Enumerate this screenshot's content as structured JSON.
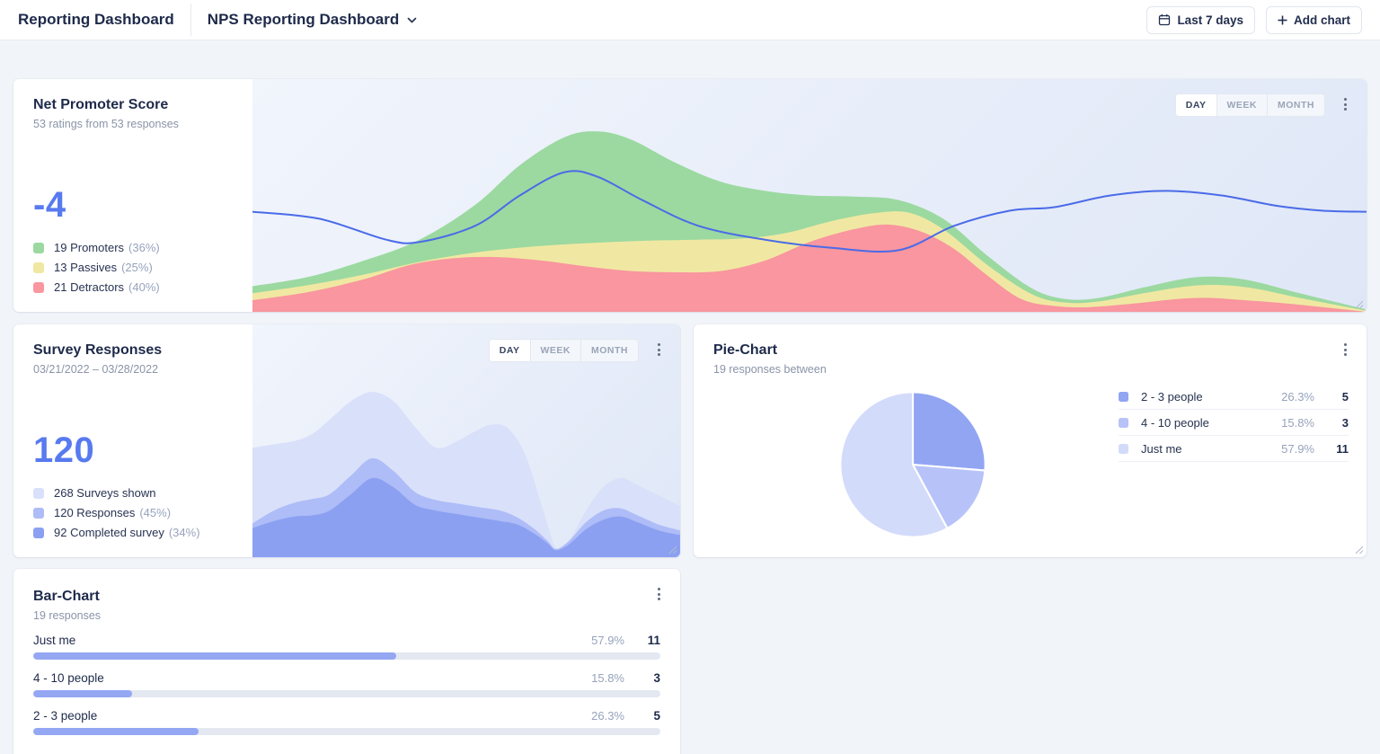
{
  "header": {
    "app_title": "Reporting Dashboard",
    "dashboard_title": "NPS Reporting Dashboard",
    "date_range_label": "Last 7 days",
    "add_chart_label": "Add chart"
  },
  "interval_toggle": {
    "options": [
      "DAY",
      "WEEK",
      "MONTH"
    ],
    "active": "DAY"
  },
  "nps_card": {
    "title": "Net Promoter Score",
    "subtitle": "53 ratings from 53 responses",
    "score": "-4",
    "legend": [
      {
        "label": "19 Promoters",
        "pct": "(36%)",
        "color": "#9BD9A0"
      },
      {
        "label": "13 Passives",
        "pct": "(25%)",
        "color": "#F0E8A2"
      },
      {
        "label": "21 Detractors",
        "pct": "(40%)",
        "color": "#F9969F"
      }
    ]
  },
  "survey_card": {
    "title": "Survey Responses",
    "subtitle": "03/21/2022 – 03/28/2022",
    "total": "120",
    "legend": [
      {
        "label": "268 Surveys shown",
        "pct": "",
        "color": "#D9E0FA"
      },
      {
        "label": "120 Responses",
        "pct": "(45%)",
        "color": "#AEBCF7"
      },
      {
        "label": "92 Completed survey",
        "pct": "(34%)",
        "color": "#8CA0F2"
      }
    ]
  },
  "pie_card": {
    "title": "Pie-Chart",
    "subtitle": "19 responses between",
    "rows": [
      {
        "label": "2 - 3 people",
        "pct": "26.3%",
        "count": "5",
        "color": "#92A5F3"
      },
      {
        "label": "4 - 10 people",
        "pct": "15.8%",
        "count": "3",
        "color": "#B7C3F8"
      },
      {
        "label": "Just me",
        "pct": "57.9%",
        "count": "11",
        "color": "#D3DBFA"
      }
    ]
  },
  "bar_card": {
    "title": "Bar-Chart",
    "subtitle": "19 responses",
    "rows": [
      {
        "label": "Just me",
        "pct": "57.9%",
        "count": "11"
      },
      {
        "label": "4 - 10 people",
        "pct": "15.8%",
        "count": "3"
      },
      {
        "label": "2 - 3 people",
        "pct": "26.3%",
        "count": "5"
      }
    ]
  },
  "chart_data": [
    {
      "id": "nps-trend",
      "type": "area",
      "title": "Net Promoter Score trend",
      "axes_visible": false,
      "note": "Smoothed overlapping areas, painted in listed order; points are [x 0-100, y fraction from top 0-1]; no axis ticks shown in UI",
      "series": [
        {
          "name": "Promoters",
          "color": "#9BD9A0",
          "points": [
            [
              0,
              0.89
            ],
            [
              5,
              0.85
            ],
            [
              10,
              0.78
            ],
            [
              15,
              0.69
            ],
            [
              20,
              0.54
            ],
            [
              24,
              0.37
            ],
            [
              28,
              0.25
            ],
            [
              31,
              0.225
            ],
            [
              34,
              0.26
            ],
            [
              38,
              0.36
            ],
            [
              42,
              0.44
            ],
            [
              46,
              0.48
            ],
            [
              50,
              0.5
            ],
            [
              54,
              0.505
            ],
            [
              58,
              0.52
            ],
            [
              62,
              0.6
            ],
            [
              66,
              0.76
            ],
            [
              70,
              0.9
            ],
            [
              73,
              0.945
            ],
            [
              76,
              0.94
            ],
            [
              80,
              0.895
            ],
            [
              84,
              0.855
            ],
            [
              87,
              0.85
            ],
            [
              90,
              0.87
            ],
            [
              94,
              0.92
            ],
            [
              100,
              0.99
            ]
          ]
        },
        {
          "name": "Passives",
          "color": "#F0E8A2",
          "points": [
            [
              0,
              0.92
            ],
            [
              5,
              0.885
            ],
            [
              10,
              0.84
            ],
            [
              15,
              0.785
            ],
            [
              20,
              0.745
            ],
            [
              25,
              0.72
            ],
            [
              30,
              0.705
            ],
            [
              35,
              0.695
            ],
            [
              40,
              0.69
            ],
            [
              44,
              0.685
            ],
            [
              48,
              0.66
            ],
            [
              52,
              0.61
            ],
            [
              56,
              0.575
            ],
            [
              59,
              0.575
            ],
            [
              62,
              0.645
            ],
            [
              66,
              0.8
            ],
            [
              70,
              0.925
            ],
            [
              73,
              0.96
            ],
            [
              76,
              0.955
            ],
            [
              80,
              0.92
            ],
            [
              84,
              0.89
            ],
            [
              87,
              0.885
            ],
            [
              90,
              0.9
            ],
            [
              94,
              0.94
            ],
            [
              100,
              0.995
            ]
          ]
        },
        {
          "name": "Detractors",
          "color": "#F9969F",
          "points": [
            [
              0,
              0.95
            ],
            [
              5,
              0.915
            ],
            [
              10,
              0.86
            ],
            [
              14,
              0.8
            ],
            [
              18,
              0.77
            ],
            [
              22,
              0.765
            ],
            [
              26,
              0.78
            ],
            [
              30,
              0.805
            ],
            [
              34,
              0.825
            ],
            [
              38,
              0.83
            ],
            [
              42,
              0.825
            ],
            [
              46,
              0.78
            ],
            [
              50,
              0.7
            ],
            [
              54,
              0.645
            ],
            [
              57,
              0.625
            ],
            [
              60,
              0.655
            ],
            [
              63,
              0.73
            ],
            [
              66,
              0.845
            ],
            [
              69,
              0.945
            ],
            [
              72,
              0.975
            ],
            [
              75,
              0.98
            ],
            [
              79,
              0.965
            ],
            [
              83,
              0.945
            ],
            [
              86,
              0.94
            ],
            [
              89,
              0.95
            ],
            [
              93,
              0.965
            ],
            [
              100,
              1.0
            ]
          ]
        },
        {
          "name": "NPS",
          "type": "line",
          "color": "#4A6BE8",
          "points": [
            [
              0,
              0.57
            ],
            [
              6,
              0.6
            ],
            [
              12,
              0.69
            ],
            [
              15,
              0.7
            ],
            [
              20,
              0.63
            ],
            [
              24,
              0.5
            ],
            [
              28,
              0.4
            ],
            [
              31,
              0.42
            ],
            [
              35,
              0.52
            ],
            [
              40,
              0.63
            ],
            [
              46,
              0.69
            ],
            [
              52,
              0.725
            ],
            [
              58,
              0.735
            ],
            [
              63,
              0.63
            ],
            [
              68,
              0.565
            ],
            [
              72,
              0.55
            ],
            [
              77,
              0.5
            ],
            [
              82,
              0.48
            ],
            [
              87,
              0.5
            ],
            [
              92,
              0.545
            ],
            [
              96,
              0.565
            ],
            [
              100,
              0.57
            ]
          ]
        }
      ]
    },
    {
      "id": "survey-trend",
      "type": "area",
      "title": "Survey Responses trend",
      "axes_visible": false,
      "note": "Smoothed overlapping areas, painted in listed order; points are [x 0-100, y fraction from top 0-1]",
      "series": [
        {
          "name": "Surveys shown",
          "color": "#D9E0FA",
          "points": [
            [
              0,
              0.53
            ],
            [
              5,
              0.515
            ],
            [
              10,
              0.5
            ],
            [
              14,
              0.47
            ],
            [
              18,
              0.41
            ],
            [
              23,
              0.33
            ],
            [
              28,
              0.29
            ],
            [
              33,
              0.33
            ],
            [
              38,
              0.44
            ],
            [
              43,
              0.53
            ],
            [
              48,
              0.5
            ],
            [
              52,
              0.46
            ],
            [
              56,
              0.43
            ],
            [
              60,
              0.45
            ],
            [
              64,
              0.57
            ],
            [
              68,
              0.8
            ],
            [
              71,
              0.96
            ],
            [
              74,
              0.93
            ],
            [
              78,
              0.8
            ],
            [
              82,
              0.7
            ],
            [
              86,
              0.66
            ],
            [
              90,
              0.69
            ],
            [
              95,
              0.735
            ],
            [
              100,
              0.78
            ]
          ]
        },
        {
          "name": "Responses",
          "color": "#AEBCF7",
          "points": [
            [
              0,
              0.855
            ],
            [
              5,
              0.8
            ],
            [
              10,
              0.765
            ],
            [
              14,
              0.75
            ],
            [
              18,
              0.73
            ],
            [
              23,
              0.65
            ],
            [
              28,
              0.575
            ],
            [
              33,
              0.63
            ],
            [
              38,
              0.72
            ],
            [
              43,
              0.755
            ],
            [
              48,
              0.77
            ],
            [
              53,
              0.785
            ],
            [
              58,
              0.8
            ],
            [
              62,
              0.83
            ],
            [
              66,
              0.88
            ],
            [
              69,
              0.93
            ],
            [
              71,
              0.965
            ],
            [
              74,
              0.93
            ],
            [
              78,
              0.85
            ],
            [
              82,
              0.8
            ],
            [
              86,
              0.79
            ],
            [
              90,
              0.82
            ],
            [
              95,
              0.86
            ],
            [
              100,
              0.885
            ]
          ]
        },
        {
          "name": "Completed survey",
          "color": "#8CA0F2",
          "points": [
            [
              0,
              0.875
            ],
            [
              5,
              0.845
            ],
            [
              10,
              0.825
            ],
            [
              14,
              0.82
            ],
            [
              18,
              0.8
            ],
            [
              23,
              0.73
            ],
            [
              28,
              0.66
            ],
            [
              33,
              0.7
            ],
            [
              38,
              0.775
            ],
            [
              43,
              0.8
            ],
            [
              48,
              0.815
            ],
            [
              53,
              0.83
            ],
            [
              58,
              0.845
            ],
            [
              62,
              0.86
            ],
            [
              66,
              0.9
            ],
            [
              69,
              0.94
            ],
            [
              71,
              0.97
            ],
            [
              74,
              0.945
            ],
            [
              78,
              0.88
            ],
            [
              82,
              0.84
            ],
            [
              86,
              0.825
            ],
            [
              90,
              0.85
            ],
            [
              95,
              0.885
            ],
            [
              100,
              0.905
            ]
          ]
        }
      ]
    },
    {
      "id": "team-size-pie",
      "type": "pie",
      "title": "Pie-Chart",
      "labels": [
        "2 - 3 people",
        "4 - 10 people",
        "Just me"
      ],
      "values": [
        5,
        3,
        11
      ],
      "percentages": [
        26.3,
        15.8,
        57.9
      ],
      "colors": [
        "#92A5F3",
        "#B7C3F8",
        "#D3DBFA"
      ],
      "start_angle_deg": -90,
      "direction": "clockwise",
      "legend_position": "right"
    },
    {
      "id": "team-size-bars",
      "type": "bar",
      "title": "Bar-Chart",
      "orientation": "horizontal",
      "categories": [
        "Just me",
        "4 - 10 people",
        "2 - 3 people"
      ],
      "values": [
        11,
        3,
        5
      ],
      "percentages": [
        57.9,
        15.8,
        26.3
      ],
      "bar_color": "#94A7F3",
      "track_color": "#E3E8F1",
      "xlim": [
        0,
        100
      ]
    }
  ]
}
